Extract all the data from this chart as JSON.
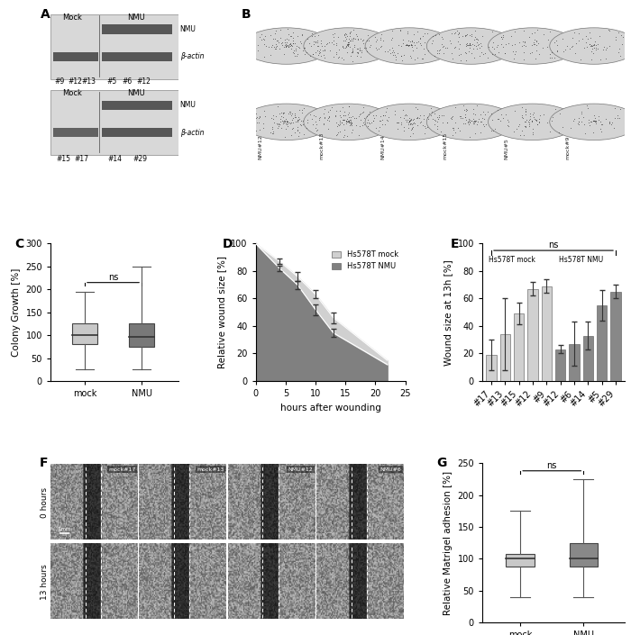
{
  "panel_C": {
    "ylabel": "Colony Growth [%]",
    "categories": [
      "mock",
      "NMU"
    ],
    "mock_box": {
      "median": 100,
      "q1": 80,
      "q3": 125,
      "whisker_low": 25,
      "whisker_high": 195
    },
    "nmu_box": {
      "median": 97,
      "q1": 75,
      "q3": 125,
      "whisker_low": 25,
      "whisker_high": 250
    },
    "ylim": [
      0,
      300
    ],
    "yticks": [
      0,
      50,
      100,
      150,
      200,
      250,
      300
    ],
    "mock_color": "#c8c8c8",
    "nmu_color": "#787878",
    "ns_text": "ns"
  },
  "panel_D": {
    "xlabel": "hours after wounding",
    "ylabel": "Relative wound size [%]",
    "mock_color": "#d0d0d0",
    "nmu_color": "#808080",
    "time_points": [
      0,
      4,
      7,
      10,
      13,
      22
    ],
    "mock_values": [
      100,
      87,
      76,
      63,
      46,
      15
    ],
    "nmu_values": [
      100,
      82,
      70,
      52,
      35,
      12
    ],
    "mock_errors": [
      0,
      2,
      3,
      3,
      4,
      2
    ],
    "nmu_errors": [
      0,
      2,
      3,
      4,
      3,
      2
    ],
    "data_x": [
      4,
      7,
      10,
      13
    ],
    "xlim": [
      0,
      25
    ],
    "ylim": [
      0,
      100
    ],
    "xticks": [
      0,
      5,
      10,
      15,
      20,
      25
    ],
    "yticks": [
      0,
      20,
      40,
      60,
      80,
      100
    ],
    "legend_labels": [
      "Hs578T mock",
      "Hs578T NMU"
    ]
  },
  "panel_E": {
    "ylabel": "Wound size at 13h [%]",
    "xlabels": [
      "#17",
      "#13",
      "#15",
      "#12",
      "#9",
      "#12",
      "#6",
      "#14",
      "#5",
      "#29"
    ],
    "values": [
      19,
      34,
      49,
      67,
      69,
      23,
      27,
      33,
      55,
      65
    ],
    "errors": [
      11,
      26,
      8,
      5,
      5,
      3,
      16,
      10,
      11,
      5
    ],
    "mock_color": "#d0d0d0",
    "nmu_color": "#888888",
    "n_mock": 5,
    "n_nmu": 5,
    "ylim": [
      0,
      100
    ],
    "yticks": [
      0,
      20,
      40,
      60,
      80,
      100
    ],
    "group_labels": [
      "Hs578T mock",
      "Hs578T NMU"
    ],
    "ns_text": "ns"
  },
  "panel_G": {
    "ylabel": "Relative Matrigel adhesion [%]",
    "categories": [
      "mock",
      "NMU"
    ],
    "mock_box": {
      "median": 100,
      "q1": 88,
      "q3": 108,
      "whisker_low": 40,
      "whisker_high": 175
    },
    "nmu_box": {
      "median": 100,
      "q1": 88,
      "q3": 125,
      "whisker_low": 40,
      "whisker_high": 225
    },
    "ylim": [
      0,
      250
    ],
    "yticks": [
      0,
      50,
      100,
      150,
      200,
      250
    ],
    "mock_color": "#c8c8c8",
    "nmu_color": "#888888",
    "ns_text": "ns"
  },
  "bg_color": "#ffffff",
  "panel_label_fontsize": 10,
  "axis_fontsize": 7.5,
  "tick_fontsize": 7
}
